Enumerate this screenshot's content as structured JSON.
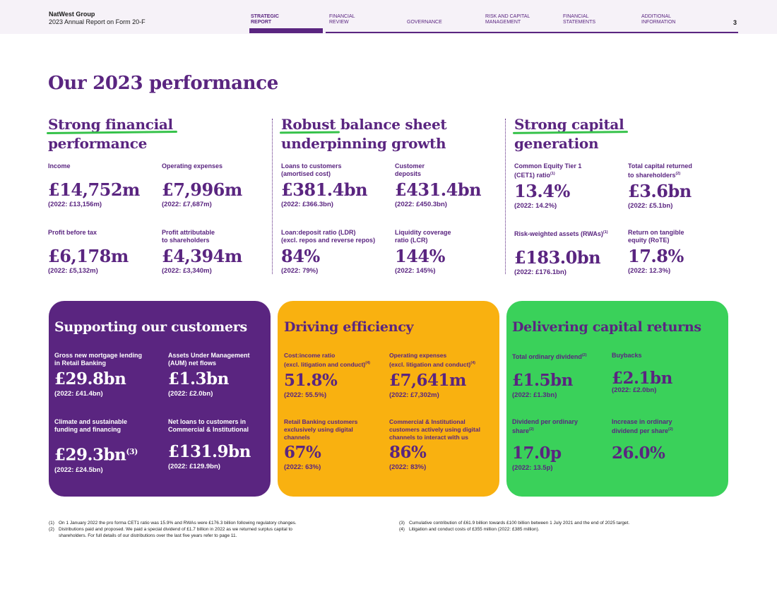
{
  "header": {
    "company": "NatWest Group",
    "report": "2023 Annual Report on Form 20-F",
    "nav": [
      {
        "line1": "STRATEGIC",
        "line2": "REPORT"
      },
      {
        "line1": "FINANCIAL",
        "line2": "REVIEW"
      },
      {
        "line1": "",
        "line2": "GOVERNANCE"
      },
      {
        "line1": "RISK AND CAPITAL",
        "line2": "MANAGEMENT"
      },
      {
        "line1": "FINANCIAL",
        "line2": "STATEMENTS"
      },
      {
        "line1": "ADDITIONAL",
        "line2": "INFORMATION"
      }
    ],
    "page_number": "3"
  },
  "title": "Our 2023 performance",
  "sections": [
    {
      "title_hl": "Strong financial",
      "title_rest": "performance",
      "metrics": [
        {
          "label": "Income",
          "value": "£14,752m",
          "prev": "(2022: £13,156m)"
        },
        {
          "label": "Operating expenses",
          "value": "£7,996m",
          "prev": "(2022: £7,687m)"
        },
        {
          "label": "Profit before tax",
          "value": "£6,178m",
          "prev": "(2022: £5,132m)"
        },
        {
          "label": "Profit attributable",
          "label2": "to shareholders",
          "value": "£4,394m",
          "prev": "(2022: £3,340m)"
        }
      ]
    },
    {
      "title_hl": "Robust",
      "title_rest1": " balance sheet",
      "title_rest2": "underpinning growth",
      "metrics": [
        {
          "label": "Loans to customers",
          "label2": "(amortised cost)",
          "value": "£381.4bn",
          "prev": "(2022: £366.3bn)"
        },
        {
          "label": "Customer",
          "label2": "deposits",
          "value": "£431.4bn",
          "prev": "(2022: £450.3bn)"
        },
        {
          "label": "Loan:deposit ratio (LDR)",
          "label2": "(excl. repos and reverse repos)",
          "value": "84%",
          "prev": "(2022: 79%)"
        },
        {
          "label": "Liquidity coverage",
          "label2": "ratio (LCR)",
          "value": "144%",
          "prev": "(2022: 145%)"
        }
      ]
    },
    {
      "title_hl": "Strong capital",
      "title_rest": "generation",
      "metrics": [
        {
          "label": "Common Equity Tier 1",
          "label2": "(CET1) ratio",
          "sup": "(1)",
          "value": "13.4%",
          "prev": "(2022: 14.2%)"
        },
        {
          "label": "Total capital returned",
          "label2": "to shareholders",
          "sup": "(2)",
          "value": "£3.6bn",
          "prev": "(2022: £5.1bn)"
        },
        {
          "label": "Risk-weighted assets (RWAs)",
          "sup": "(1)",
          "value": "£183.0bn",
          "prev": "(2022: £176.1bn)"
        },
        {
          "label": "Return on tangible",
          "label2": "equity (RoTE)",
          "value": "17.8%",
          "prev": "(2022: 12.3%)"
        }
      ]
    }
  ],
  "cards": [
    {
      "title": "Supporting our customers",
      "metrics": [
        {
          "label": "Gross new mortgage lending",
          "label2": "in Retail Banking",
          "value": "£29.8bn",
          "prev": "(2022: £41.4bn)"
        },
        {
          "label": "Assets Under Management",
          "label2": "(AUM) net flows",
          "value": "£1.3bn",
          "prev": "(2022: £2.0bn)"
        },
        {
          "label": "Climate and sustainable",
          "label2": "funding and financing",
          "value": "£29.3bn",
          "sup": "(3)",
          "prev": "(2022: £24.5bn)"
        },
        {
          "label": "Net loans to customers in",
          "label2": "Commercial & Institutional",
          "value": "£131.9bn",
          "prev": "(2022: £129.9bn)"
        }
      ]
    },
    {
      "title": "Driving efficiency",
      "metrics": [
        {
          "label": "Cost:income ratio",
          "label2": "(excl. litigation and conduct)",
          "sup": "(4)",
          "value": "51.8%",
          "prev": "(2022: 55.5%)"
        },
        {
          "label": "Operating expenses",
          "label2": "(excl. litigation and conduct)",
          "sup": "(4)",
          "value": "£7,641m",
          "prev": "(2022: £7,302m)"
        },
        {
          "label": "Retail Banking customers",
          "label2": "exclusively using digital",
          "label3": "channels",
          "value": "67%",
          "prev": "(2022: 63%)"
        },
        {
          "label": "Commercial & Institutional",
          "label2": "customers actively using digital",
          "label3": "channels to interact with us",
          "value": "86%",
          "prev": "(2022: 83%)"
        }
      ]
    },
    {
      "title": "Delivering capital returns",
      "metrics": [
        {
          "label": "Total ordinary dividend",
          "sup": "(2)",
          "value": "£1.5bn",
          "prev": "(2022: £1.3bn)"
        },
        {
          "label": "Buybacks",
          "value": "£2.1bn",
          "prev": "(2022: £2.0bn)"
        },
        {
          "label": "Dividend per ordinary",
          "label2": "share",
          "sup": "(2)",
          "value": "17.0p",
          "prev": "(2022: 13.5p)"
        },
        {
          "label": "Increase in ordinary",
          "label2": "dividend per share",
          "sup": "(2)",
          "value": "26.0%"
        }
      ]
    }
  ],
  "footnotes": [
    {
      "num": "(1)",
      "text": "On 1 January 2022 the pro forma CET1 ratio was 15.9% and RWAs were £176.3 billion following regulatory changes."
    },
    {
      "num": "(2)",
      "text": "Distributions paid and proposed. We paid a special dividend of £1.7 billion in 2022 as we returned surplus capital to",
      "text2": "shareholders. For full details of our distributions over the last five years refer to page 11."
    },
    {
      "num": "(3)",
      "text": "Cumulative contribution of £61.9 billion towards £100 billion between 1 July 2021 and the end of 2025 target."
    },
    {
      "num": "(4)",
      "text": "Litigation and conduct costs of £355 million (2022: £385 million)."
    }
  ]
}
